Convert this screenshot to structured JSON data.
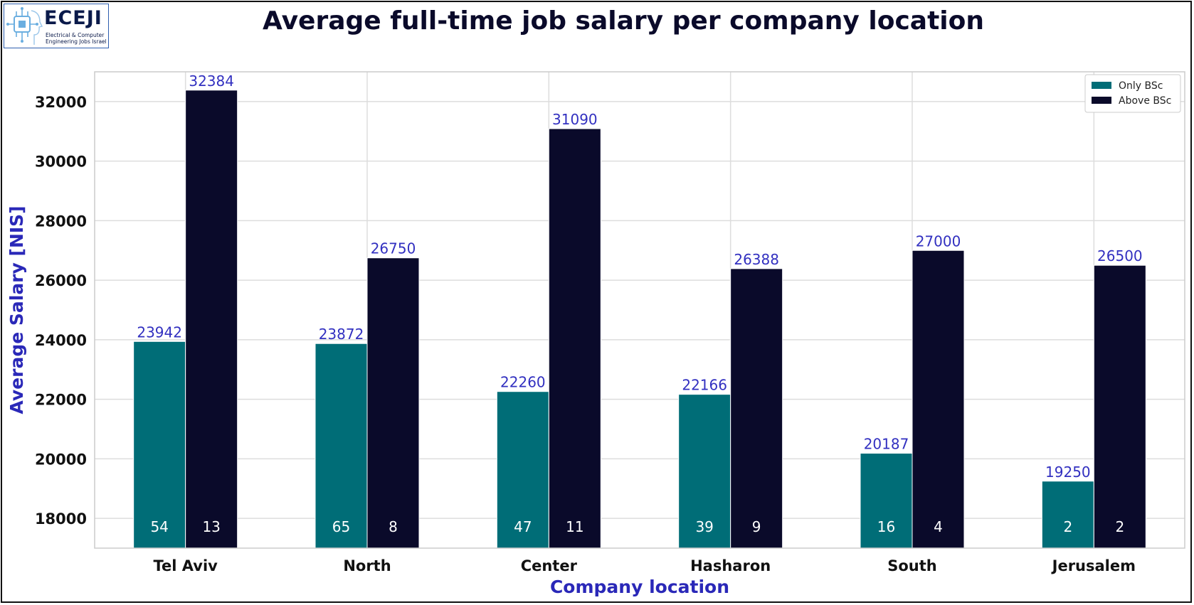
{
  "logo": {
    "name": "ECEJI",
    "subtitle_line1": "Electrical & Computer",
    "subtitle_line2": "Engineering Jobs Israel"
  },
  "chart_data": {
    "type": "bar",
    "title": "Average full-time job salary per company location",
    "xlabel": "Company location",
    "ylabel": "Average Salary [NIS]",
    "ylim": [
      17000,
      33000
    ],
    "yticks": [
      18000,
      20000,
      22000,
      24000,
      26000,
      28000,
      30000,
      32000
    ],
    "categories": [
      "Tel Aviv",
      "North",
      "Center",
      "Hasharon",
      "South",
      "Jerusalem"
    ],
    "series": [
      {
        "name": "Only BSc",
        "color": "#006d77",
        "values": [
          23942,
          23872,
          22260,
          22166,
          20187,
          19250
        ],
        "counts": [
          54,
          65,
          47,
          39,
          16,
          2
        ]
      },
      {
        "name": "Above BSc",
        "color": "#0a0a2a",
        "values": [
          32384,
          26750,
          31090,
          26388,
          27000,
          26500
        ],
        "counts": [
          13,
          8,
          11,
          9,
          4,
          2
        ]
      }
    ],
    "legend_position": "top-right",
    "grid": true,
    "colors": {
      "title": "#0a0a2a",
      "axis_label": "#2a28b8",
      "value_label": "#3230c0",
      "count_label": "#ffffff"
    }
  }
}
